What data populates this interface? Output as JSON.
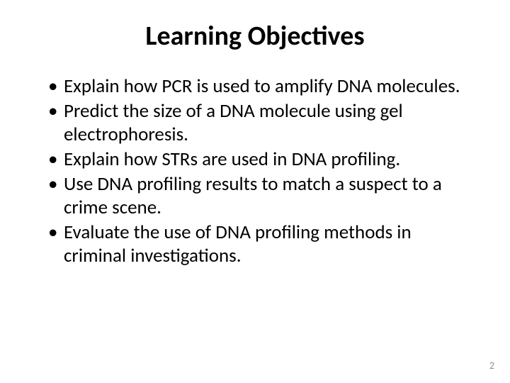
{
  "slide": {
    "title": "Learning Objectives",
    "title_fontsize": 38,
    "title_fontweight": "bold",
    "title_color": "#000000",
    "bullet_fontsize": 27,
    "bullet_color": "#000000",
    "background_color": "#ffffff",
    "bullets": [
      "Explain how PCR is used to amplify DNA molecules.",
      "Predict the size of a DNA molecule using gel electrophoresis.",
      "Explain how STRs are used in DNA profiling.",
      "Use DNA profiling results to match a suspect to a crime scene.",
      "Evaluate the use of DNA profiling methods in criminal investigations."
    ],
    "page_number": "2",
    "page_number_fontsize": 14,
    "page_number_color": "#8f8f8f"
  }
}
